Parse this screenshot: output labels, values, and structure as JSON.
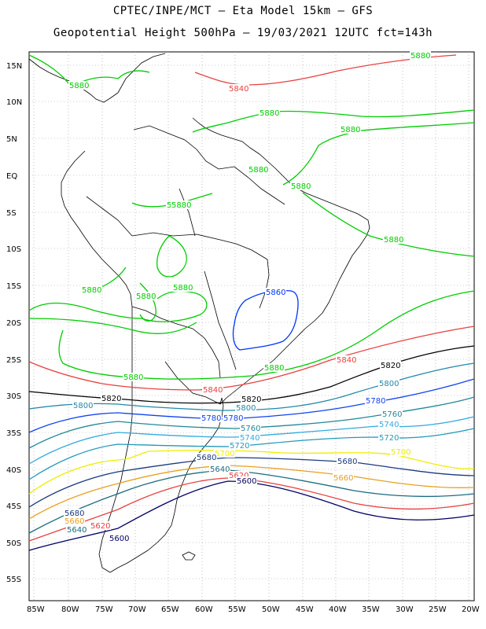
{
  "title_line1": "CPTEC/INPE/MCT –  Eta Model 15km – GFS",
  "title_line2": "Geopotential Height 500hPa – 19/03/2021 12UTC fct=143h",
  "lat_ticks": [
    "15N",
    "10N",
    "5N",
    "EQ",
    "5S",
    "10S",
    "15S",
    "20S",
    "25S",
    "30S",
    "35S",
    "40S",
    "45S",
    "50S",
    "55S"
  ],
  "lon_ticks": [
    "85W",
    "80W",
    "75W",
    "70W",
    "65W",
    "60W",
    "55W",
    "50W",
    "45W",
    "40W",
    "35W",
    "30W",
    "25W",
    "20W"
  ],
  "contour_colors": {
    "5880": "#00cc00",
    "5860": "#0033ff",
    "5840": "#e84040",
    "5820": "#000000",
    "5800": "#2288aa",
    "5780": "#1144ee",
    "5760": "#228899",
    "5740": "#33aadd",
    "5720": "#2299bb",
    "5700": "#eeee00",
    "5680": "#1a3a80",
    "5660": "#e8a020",
    "5640": "#1a6a80",
    "5620": "#e84040",
    "5600": "#000066"
  },
  "contour_labels": [
    {
      "text": "5880",
      "key": "5880"
    },
    {
      "text": "5880",
      "key": "5880"
    },
    {
      "text": "5880",
      "key": "5880"
    },
    {
      "text": "5880",
      "key": "5880"
    },
    {
      "text": "5880",
      "key": "5880"
    },
    {
      "text": "5880",
      "key": "5880"
    },
    {
      "text": "5880",
      "key": "5880"
    },
    {
      "text": "5880",
      "key": "5880"
    },
    {
      "text": "5880",
      "key": "5880"
    },
    {
      "text": "5880",
      "key": "5880"
    },
    {
      "text": "5880",
      "key": "5880"
    },
    {
      "text": "5880",
      "key": "5880"
    },
    {
      "text": "5880",
      "key": "5880"
    },
    {
      "text": "5880",
      "key": "5880"
    },
    {
      "text": "5860",
      "key": "5860"
    },
    {
      "text": "5840",
      "key": "5840"
    },
    {
      "text": "5840",
      "key": "5840"
    },
    {
      "text": "5840",
      "key": "5840"
    },
    {
      "text": "5820",
      "key": "5820"
    },
    {
      "text": "5820",
      "key": "5820"
    },
    {
      "text": "5820",
      "key": "5820"
    },
    {
      "text": "5800",
      "key": "5800"
    },
    {
      "text": "5800",
      "key": "5800"
    },
    {
      "text": "5800",
      "key": "5800"
    },
    {
      "text": "5780",
      "key": "5780"
    },
    {
      "text": "5780",
      "key": "5780"
    },
    {
      "text": "5780",
      "key": "5780"
    },
    {
      "text": "5760",
      "key": "5760"
    },
    {
      "text": "5760",
      "key": "5760"
    },
    {
      "text": "5740",
      "key": "5740"
    },
    {
      "text": "5740",
      "key": "5740"
    },
    {
      "text": "5720",
      "key": "5720"
    },
    {
      "text": "5720",
      "key": "5720"
    },
    {
      "text": "5700",
      "key": "5700"
    },
    {
      "text": "5700",
      "key": "5700"
    },
    {
      "text": "5680",
      "key": "5680"
    },
    {
      "text": "5680",
      "key": "5680"
    },
    {
      "text": "5680",
      "key": "5680"
    },
    {
      "text": "5660",
      "key": "5660"
    },
    {
      "text": "5660",
      "key": "5660"
    },
    {
      "text": "5640",
      "key": "5640"
    },
    {
      "text": "5640",
      "key": "5640"
    },
    {
      "text": "5620",
      "key": "5620"
    },
    {
      "text": "5620",
      "key": "5620"
    },
    {
      "text": "5600",
      "key": "5600"
    },
    {
      "text": "5600",
      "key": "5600"
    }
  ]
}
